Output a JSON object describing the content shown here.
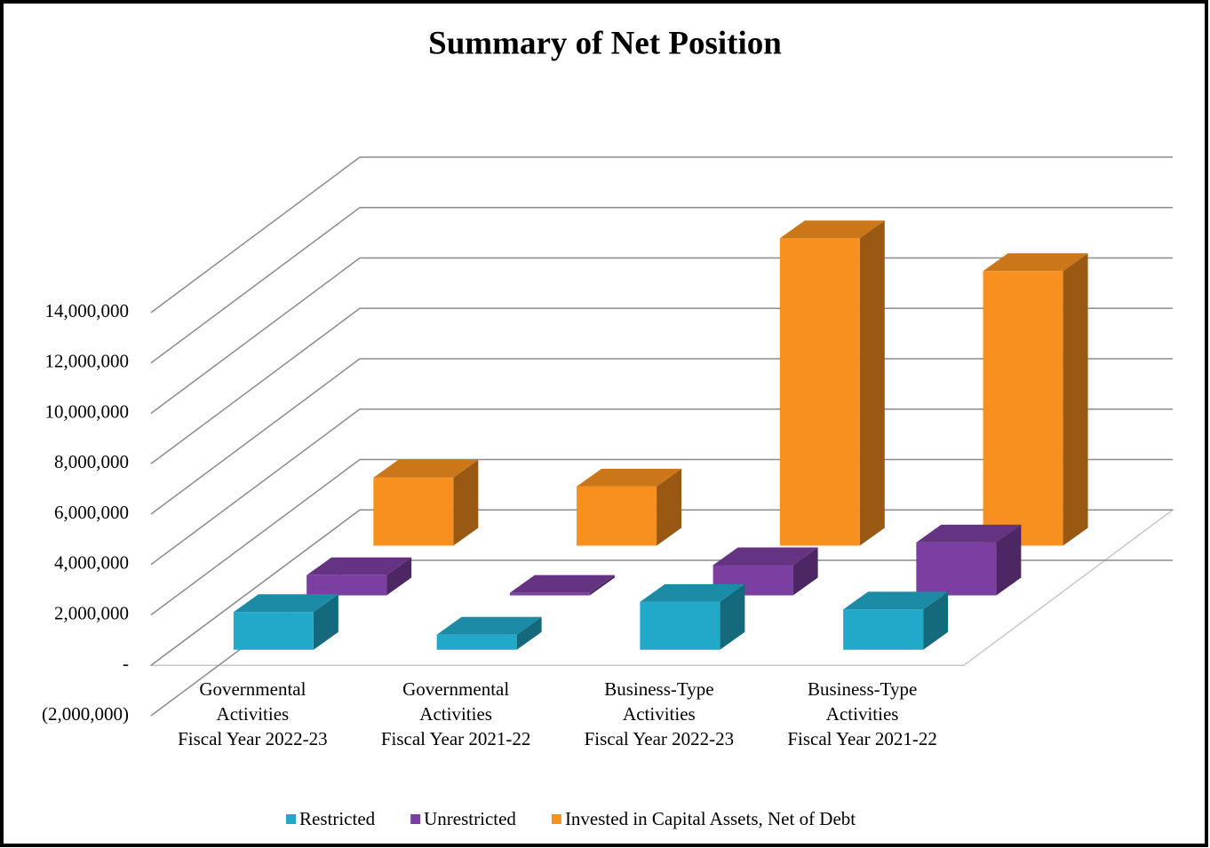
{
  "chart_data": {
    "type": "bar3d",
    "title": "Summary of Net Position",
    "categories": [
      [
        "Governmental",
        "Activities",
        "Fiscal Year 2022-23"
      ],
      [
        "Governmental",
        "Activities",
        "Fiscal Year 2021-22"
      ],
      [
        "Business-Type",
        "Activities",
        "Fiscal Year 2022-23"
      ],
      [
        "Business-Type",
        "Activities",
        "Fiscal Year 2021-22"
      ]
    ],
    "series": [
      {
        "name": "Restricted",
        "color": "#22a9c9",
        "values": [
          1500000,
          600000,
          1900000,
          1600000
        ]
      },
      {
        "name": "Unrestricted",
        "color": "#7a3fa0",
        "values": [
          800000,
          100000,
          1200000,
          2100000
        ]
      },
      {
        "name": "Invested in Capital Assets, Net of Debt",
        "color": "#f7901e",
        "values": [
          2700000,
          2350000,
          12200000,
          10900000
        ]
      }
    ],
    "ylim": [
      -2000000,
      14000000
    ],
    "yticks": [
      {
        "value": -2000000,
        "label": "(2,000,000)"
      },
      {
        "value": 0,
        "label": "-"
      },
      {
        "value": 2000000,
        "label": "2,000,000"
      },
      {
        "value": 4000000,
        "label": "4,000,000"
      },
      {
        "value": 6000000,
        "label": "6,000,000"
      },
      {
        "value": 8000000,
        "label": "8,000,000"
      },
      {
        "value": 10000000,
        "label": "10,000,000"
      },
      {
        "value": 12000000,
        "label": "12,000,000"
      },
      {
        "value": 14000000,
        "label": "14,000,000"
      }
    ],
    "grid": true,
    "legend": "bottom"
  }
}
